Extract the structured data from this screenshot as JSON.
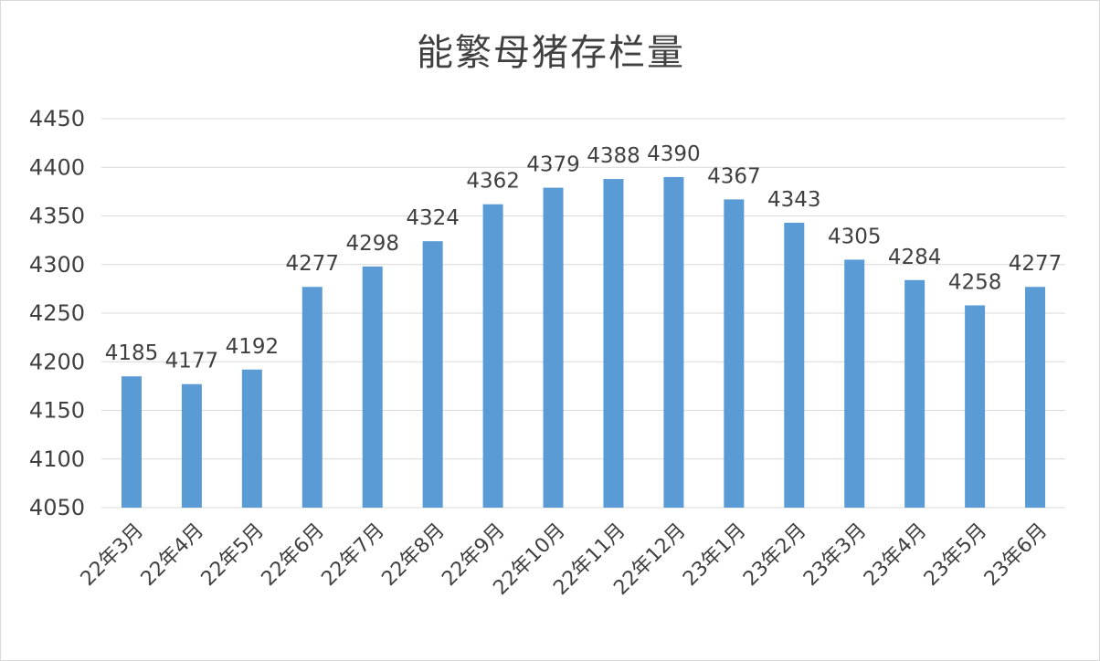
{
  "chart_data": {
    "type": "bar",
    "title": "能繁母猪存栏量",
    "xlabel": "",
    "ylabel": "",
    "categories": [
      "22年3月",
      "22年4月",
      "22年5月",
      "22年6月",
      "22年7月",
      "22年8月",
      "22年9月",
      "22年10月",
      "22年11月",
      "22年12月",
      "23年1月",
      "23年2月",
      "23年3月",
      "23年4月",
      "23年5月",
      "23年6月"
    ],
    "values": [
      4185,
      4177,
      4192,
      4277,
      4298,
      4324,
      4362,
      4379,
      4388,
      4390,
      4367,
      4343,
      4305,
      4284,
      4258,
      4277
    ],
    "ylim": [
      4050,
      4450
    ],
    "yticks": [
      4050,
      4100,
      4150,
      4200,
      4250,
      4300,
      4350,
      4400,
      4450
    ],
    "grid": true,
    "legend": "none",
    "colors": {
      "bar": "#5b9bd5",
      "grid": "#d9d9d9",
      "text": "#404040"
    }
  }
}
